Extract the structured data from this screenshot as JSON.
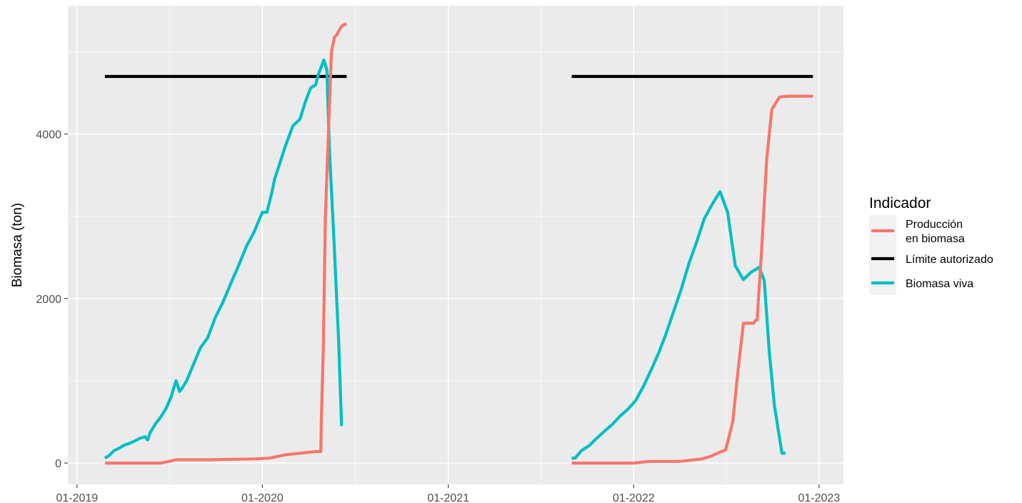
{
  "chart_data": {
    "type": "line",
    "title": "",
    "xlabel": "",
    "ylabel": "Biomasa (ton)",
    "x_tick_labels": [
      "01-2019",
      "01-2020",
      "01-2021",
      "01-2022",
      "01-2023"
    ],
    "x_ticks": [
      "2019-01-01",
      "2020-01-01",
      "2021-01-01",
      "2022-01-01",
      "2023-01-01"
    ],
    "xlim": [
      "2018-12-14",
      "2023-02-18"
    ],
    "y_ticks": [
      0,
      2000,
      4000
    ],
    "ylim": [
      -260,
      5560
    ],
    "grid": true,
    "legend": {
      "title": "Indicador",
      "position": "right",
      "entries": [
        {
          "key": "produccion",
          "lines": [
            "Producción",
            "en biomasa"
          ]
        },
        {
          "key": "limite",
          "lines": [
            "Límite autorizado"
          ]
        },
        {
          "key": "biomasa",
          "lines": [
            "Biomasa viva"
          ]
        }
      ]
    },
    "series": [
      {
        "key": "limite",
        "name": "Límite autorizado",
        "color": "#000000",
        "segments": [
          {
            "x": [
              "2019-02-25",
              "2020-06-15"
            ],
            "y": [
              4700,
              4700
            ]
          },
          {
            "x": [
              "2021-09-01",
              "2022-12-20"
            ],
            "y": [
              4700,
              4700
            ]
          }
        ]
      },
      {
        "key": "biomasa",
        "name": "Biomasa viva",
        "color": "#00BFC4",
        "segments": [
          {
            "x": [
              "2019-02-25",
              "2019-03-05",
              "2019-03-15",
              "2019-03-25",
              "2019-04-05",
              "2019-04-15",
              "2019-04-25",
              "2019-05-05",
              "2019-05-15",
              "2019-05-20",
              "2019-05-25",
              "2019-06-05",
              "2019-06-15",
              "2019-06-25",
              "2019-07-05",
              "2019-07-15",
              "2019-07-22",
              "2019-07-28",
              "2019-08-05",
              "2019-08-15",
              "2019-09-01",
              "2019-09-15",
              "2019-10-01",
              "2019-10-15",
              "2019-11-01",
              "2019-11-15",
              "2019-12-01",
              "2019-12-15",
              "2020-01-01",
              "2020-01-10",
              "2020-01-20",
              "2020-01-25",
              "2020-02-01",
              "2020-02-15",
              "2020-03-01",
              "2020-03-15",
              "2020-03-25",
              "2020-04-05",
              "2020-04-15",
              "2020-04-20",
              "2020-05-01",
              "2020-05-07",
              "2020-05-12",
              "2020-05-20",
              "2020-05-30",
              "2020-06-05"
            ],
            "y": [
              60,
              90,
              150,
              180,
              220,
              240,
              270,
              300,
              320,
              280,
              370,
              480,
              560,
              660,
              800,
              1000,
              870,
              920,
              1000,
              1150,
              1400,
              1520,
              1780,
              1950,
              2200,
              2400,
              2640,
              2800,
              3050,
              3050,
              3300,
              3450,
              3580,
              3850,
              4100,
              4180,
              4380,
              4560,
              4600,
              4720,
              4900,
              4780,
              3800,
              2820,
              1500,
              450
            ]
          },
          {
            "x": [
              "2021-09-01",
              "2021-09-08",
              "2021-09-20",
              "2021-10-05",
              "2021-10-20",
              "2021-11-05",
              "2021-11-20",
              "2021-12-05",
              "2021-12-20",
              "2022-01-05",
              "2022-01-20",
              "2022-02-05",
              "2022-02-20",
              "2022-03-05",
              "2022-03-20",
              "2022-04-05",
              "2022-04-20",
              "2022-05-05",
              "2022-05-20",
              "2022-06-05",
              "2022-06-20",
              "2022-07-05",
              "2022-07-20",
              "2022-08-05",
              "2022-08-20",
              "2022-09-05",
              "2022-09-15",
              "2022-09-25",
              "2022-10-05",
              "2022-10-20",
              "2022-10-27"
            ],
            "y": [
              60,
              60,
              150,
              210,
              300,
              390,
              470,
              570,
              650,
              760,
              930,
              1140,
              1350,
              1560,
              1830,
              2120,
              2430,
              2690,
              2970,
              3150,
              3300,
              3050,
              2400,
              2230,
              2320,
              2380,
              2220,
              1350,
              700,
              120,
              120
            ]
          }
        ]
      },
      {
        "key": "produccion",
        "name": "Producción en biomasa",
        "color": "#F8766D",
        "segments": [
          {
            "x": [
              "2019-02-25",
              "2019-06-15",
              "2019-07-01",
              "2019-07-15",
              "2019-09-15",
              "2019-12-15",
              "2020-01-15",
              "2020-02-15",
              "2020-03-15",
              "2020-04-15",
              "2020-04-25",
              "2020-04-26",
              "2020-04-30",
              "2020-05-04",
              "2020-05-10",
              "2020-05-16",
              "2020-05-22",
              "2020-05-26",
              "2020-06-02",
              "2020-06-05",
              "2020-06-10",
              "2020-06-15"
            ],
            "y": [
              0,
              0,
              20,
              40,
              40,
              50,
              60,
              100,
              120,
              140,
              140,
              500,
              1400,
              3000,
              4000,
              5000,
              5180,
              5200,
              5280,
              5310,
              5330,
              5340
            ]
          },
          {
            "x": [
              "2021-09-01",
              "2022-01-01",
              "2022-02-01",
              "2022-04-01",
              "2022-05-15",
              "2022-06-01",
              "2022-06-15",
              "2022-07-01",
              "2022-07-15",
              "2022-07-25",
              "2022-08-05",
              "2022-08-20",
              "2022-08-25",
              "2022-08-30",
              "2022-09-01",
              "2022-09-10",
              "2022-09-20",
              "2022-09-30",
              "2022-10-15",
              "2022-11-01",
              "2022-12-20"
            ],
            "y": [
              0,
              0,
              20,
              20,
              50,
              80,
              120,
              160,
              500,
              1100,
              1700,
              1700,
              1700,
              1740,
              1740,
              2600,
              3700,
              4300,
              4450,
              4460,
              4460
            ]
          }
        ]
      }
    ]
  }
}
